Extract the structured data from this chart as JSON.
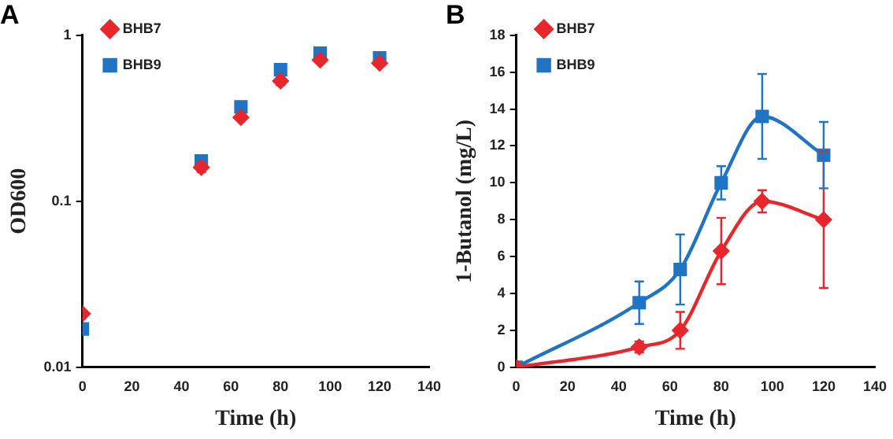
{
  "chart_data": [
    {
      "type": "scatter",
      "title": "A",
      "xlabel": "Time (h)",
      "ylabel": "OD600",
      "x": [
        0,
        48,
        64,
        80,
        96,
        120
      ],
      "log": "y",
      "xlim": [
        0,
        140
      ],
      "xticks": [
        0,
        20,
        40,
        60,
        80,
        100,
        120,
        140
      ],
      "ylim": [
        0.01,
        1
      ],
      "yticks": [
        0.01,
        0.1,
        1
      ],
      "grid": false,
      "legend": "top left",
      "series": [
        {
          "name": "BHB7",
          "color": "#e8262b",
          "marker": "diamond",
          "values": [
            0.021,
            0.16,
            0.32,
            0.53,
            0.71,
            0.68
          ],
          "errors": [
            null,
            0.01,
            null,
            0.03,
            null,
            null
          ]
        },
        {
          "name": "BHB9",
          "color": "#1f74c4",
          "marker": "square",
          "values": [
            0.017,
            0.175,
            0.37,
            0.62,
            0.78,
            0.73
          ]
        }
      ]
    },
    {
      "type": "line",
      "title": "B",
      "xlabel": "Time (h)",
      "ylabel": "1-Butanol (mg/L)",
      "x": [
        0,
        48,
        64,
        80,
        96,
        120
      ],
      "xlim": [
        0,
        140
      ],
      "xticks": [
        0,
        20,
        40,
        60,
        80,
        100,
        120,
        140
      ],
      "ylim": [
        0,
        18
      ],
      "yticks": [
        0,
        2,
        4,
        6,
        8,
        10,
        12,
        14,
        16,
        18
      ],
      "grid": false,
      "legend": "top left",
      "series": [
        {
          "name": "BHB7",
          "color": "#e8262b",
          "marker": "diamond",
          "values": [
            0,
            1.1,
            2.0,
            6.3,
            9.0,
            8.0
          ],
          "errors": [
            null,
            0.3,
            1.0,
            1.8,
            0.6,
            3.7
          ]
        },
        {
          "name": "BHB9",
          "color": "#1f74c4",
          "marker": "square",
          "values": [
            0,
            3.5,
            5.3,
            10.0,
            13.6,
            11.5
          ],
          "errors": [
            null,
            1.15,
            1.9,
            0.9,
            2.3,
            1.8
          ]
        }
      ]
    }
  ]
}
